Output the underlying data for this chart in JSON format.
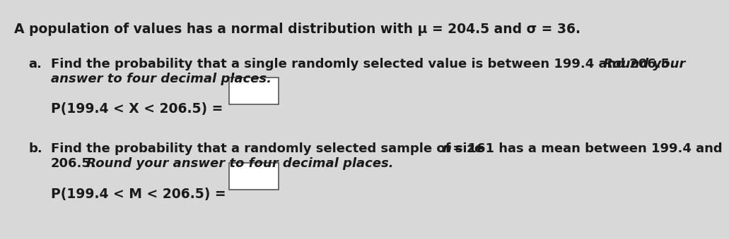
{
  "bg_color": "#d8d8d8",
  "title_line": "A population of values has a normal distribution with μ = 204.5 and σ = 36.",
  "part_a_label": "a.",
  "part_a_text1_normal": "Find the probability that a single randomly selected value is between 199.4 and 206.5.",
  "part_a_text1_italic": " Round your",
  "part_a_text2_italic": "answer to four decimal places.",
  "part_a_formula": "P(199.4 < X < 206.5) =",
  "part_b_label": "b.",
  "part_b_text1_normal": "Find the probability that a randomly selected sample of size ",
  "part_b_n": "n",
  "part_b_text1b_normal": " = 161 has a mean between 199.4 and",
  "part_b_text2_normal": "206.5.",
  "part_b_text2_italic": " Round your answer to four decimal places.",
  "part_b_formula": "P(199.4 < M < 206.5) =",
  "title_fontsize": 13.5,
  "body_fontsize": 13,
  "formula_fontsize": 13.5,
  "text_color": "#1a1a1a"
}
